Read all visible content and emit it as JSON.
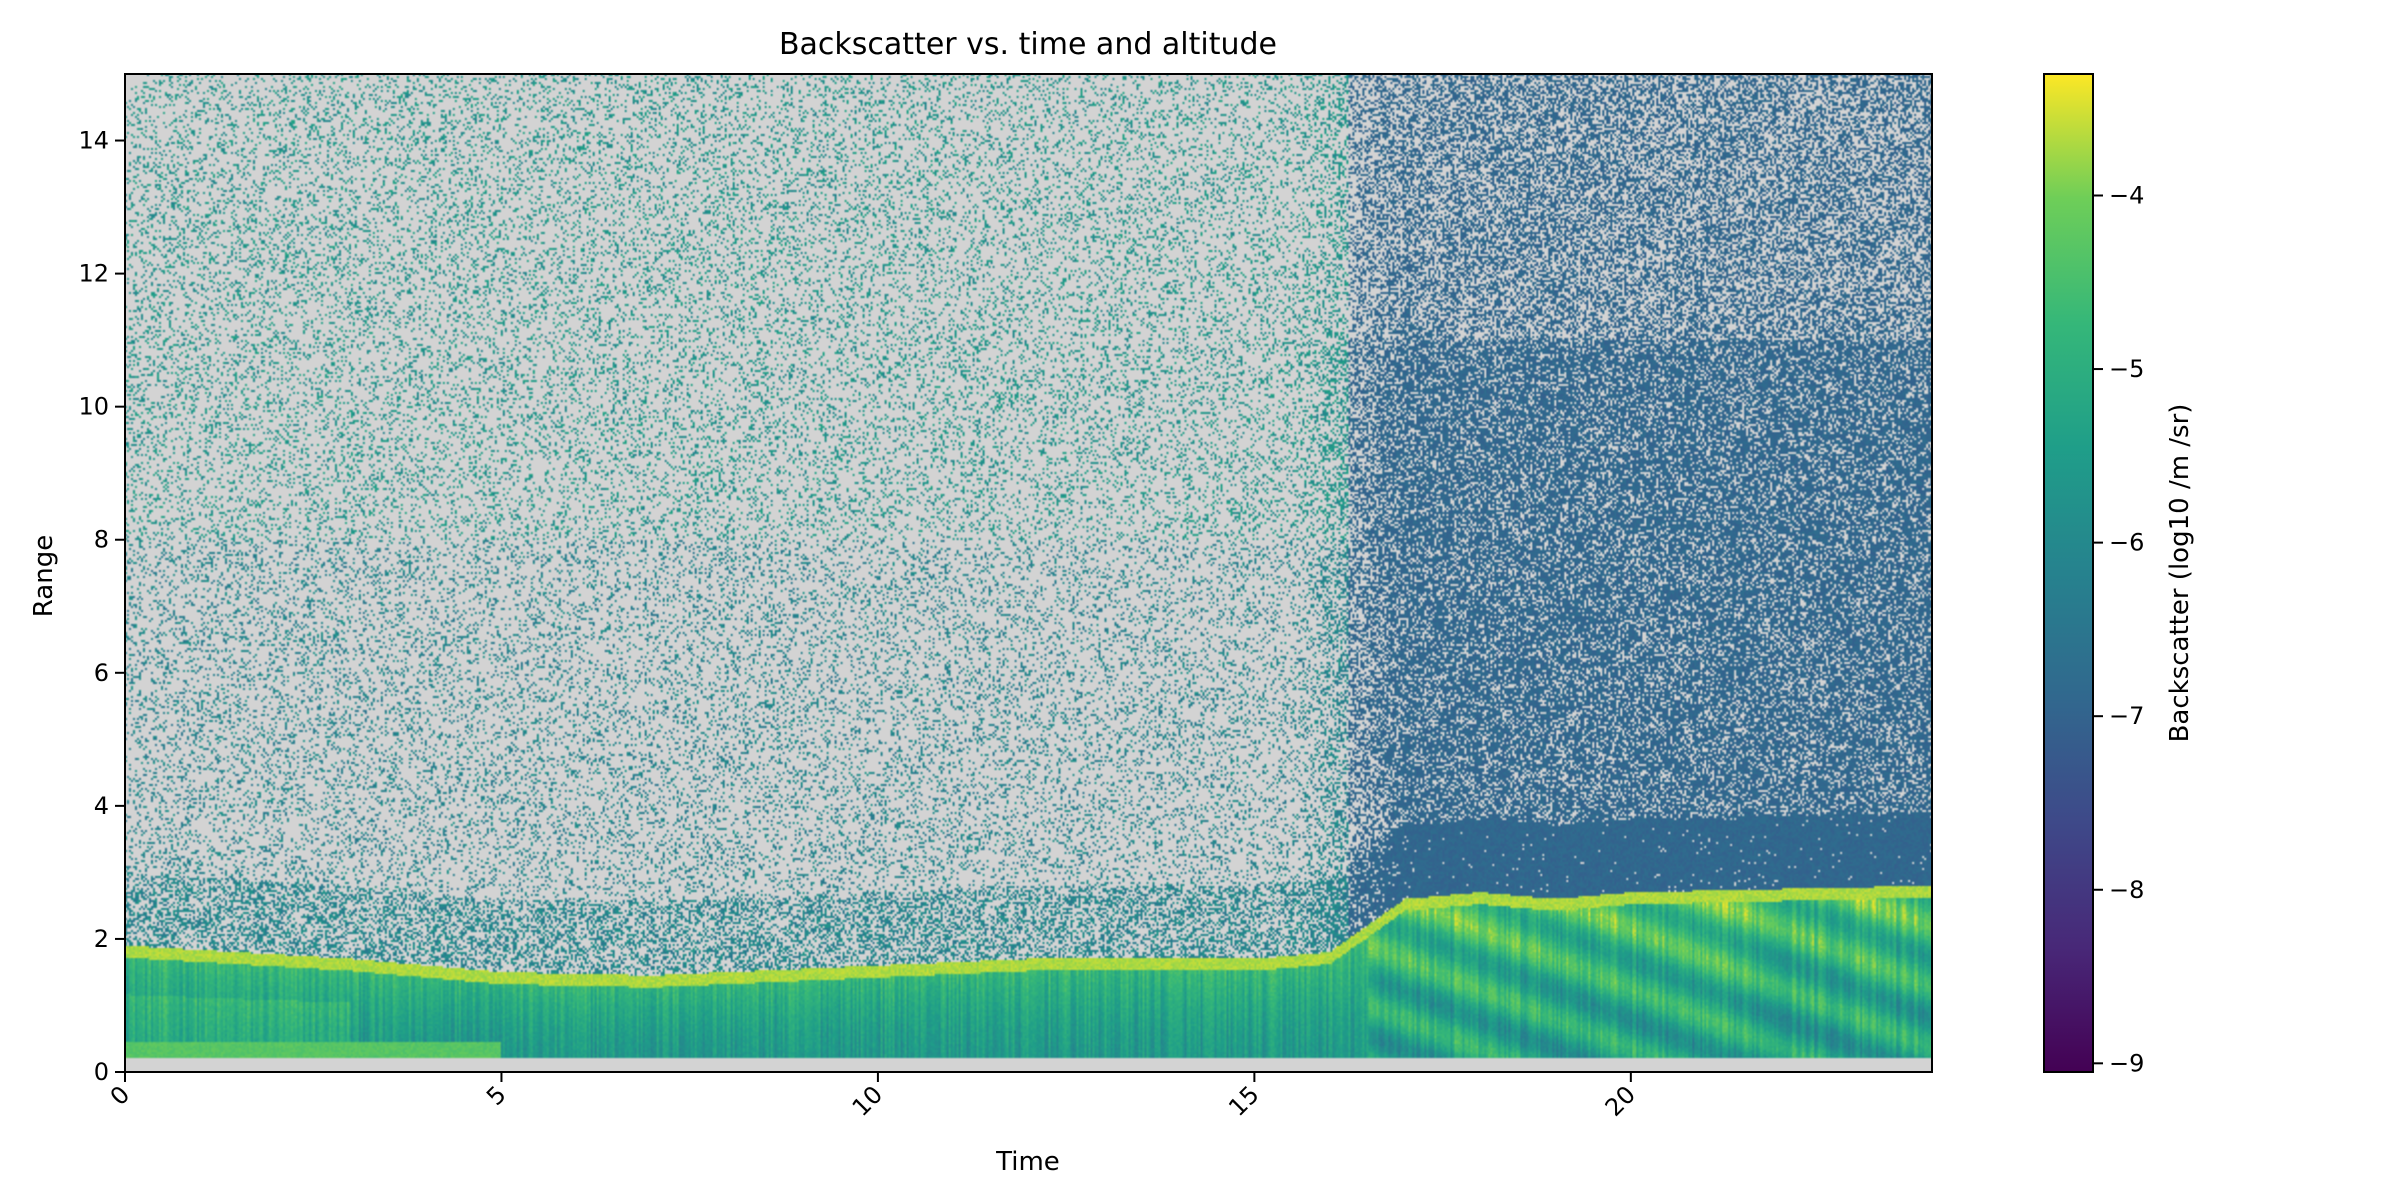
{
  "chart_data": {
    "type": "heatmap",
    "title": "Backscatter vs. time and altitude",
    "xlabel": "Time",
    "ylabel": "Range",
    "xlim": [
      0,
      24
    ],
    "ylim": [
      0,
      15
    ],
    "x_ticks": [
      0,
      5,
      10,
      15,
      20
    ],
    "y_ticks": [
      0,
      2,
      4,
      6,
      8,
      10,
      12,
      14
    ],
    "tick_label_rotation_x": 45,
    "colormap": "viridis",
    "missing_color": "#d3d3d3",
    "colorbar": {
      "label": "Backscatter (log10 /m /sr)",
      "range": [
        -9.05,
        -3.3
      ],
      "ticks": [
        -9,
        -8,
        -7,
        -6,
        -5,
        -4
      ],
      "tick_labels": [
        "−9",
        "−8",
        "−7",
        "−6",
        "−5",
        "−4"
      ]
    },
    "features": [
      {
        "name": "near_surface_no_data",
        "range": [
          0,
          0.2
        ]
      },
      {
        "name": "boundary_layer_top",
        "points": [
          [
            0,
            1.8
          ],
          [
            3,
            1.6
          ],
          [
            5,
            1.4
          ],
          [
            7,
            1.35
          ],
          [
            10,
            1.5
          ],
          [
            12,
            1.6
          ],
          [
            15,
            1.6
          ],
          [
            16,
            1.7
          ],
          [
            17,
            2.5
          ],
          [
            18,
            2.6
          ],
          [
            19,
            2.5
          ],
          [
            20,
            2.6
          ],
          [
            24,
            2.7
          ]
        ]
      },
      {
        "name": "low_level_layer",
        "points": [
          [
            0,
            0.4
          ],
          [
            3.5,
            0.35
          ],
          [
            4,
            0.3
          ],
          [
            5,
            0.3
          ]
        ]
      }
    ]
  }
}
